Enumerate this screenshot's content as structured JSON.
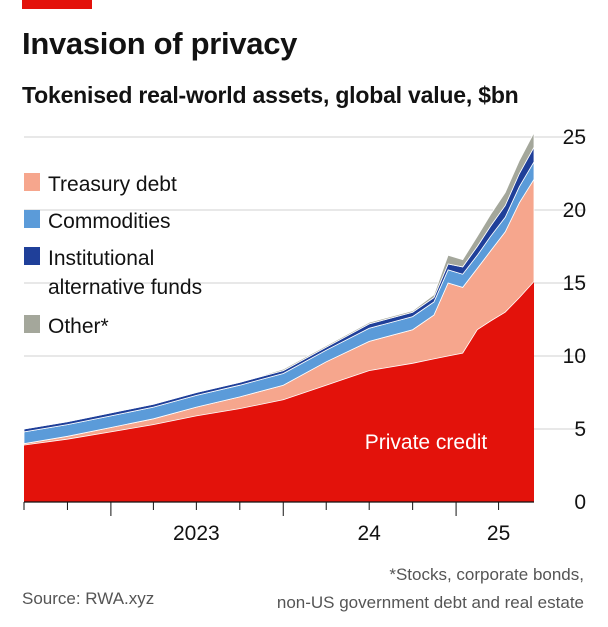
{
  "header": {
    "title": "Invasion of privacy",
    "subtitle": "Tokenised real-world assets, global value, $bn"
  },
  "colors": {
    "accent_tab": "#e3120b",
    "private_credit": "#e3120b",
    "treasury_debt": "#f6a68d",
    "commodities": "#5b9bd9",
    "institutional_alternative_funds": "#1f3f99",
    "other": "#a4a79b",
    "gridline": "#d0d0d0",
    "axis": "#121212"
  },
  "legend": [
    {
      "label": "Treasury debt",
      "color": "#f6a68d"
    },
    {
      "label": "Commodities",
      "color": "#5b9bd9"
    },
    {
      "label": "Institutional\nalternative funds",
      "color": "#1f3f99"
    },
    {
      "label": "Other*",
      "color": "#a4a79b"
    }
  ],
  "footnote": "*Stocks, corporate bonds,\nnon-US government debt and real estate",
  "source": "Source: RWA.xyz",
  "chart_data": {
    "type": "area",
    "stacked": true,
    "ylim": [
      0,
      25
    ],
    "yticks": [
      0,
      5,
      10,
      15,
      20,
      25
    ],
    "y_axis_side": "right",
    "grid": true,
    "legend_position": "top-left",
    "xlim": [
      "2022-07-01",
      "2025-06-15"
    ],
    "x_tick_labels": [
      {
        "label": "2023",
        "at": "2023-07-01"
      },
      {
        "label": "24",
        "at": "2024-07-01"
      },
      {
        "label": "25",
        "at": "2025-04-01"
      }
    ],
    "x": [
      "2022-07-01",
      "2022-10-01",
      "2023-01-01",
      "2023-04-01",
      "2023-07-01",
      "2023-10-01",
      "2024-01-01",
      "2024-04-01",
      "2024-07-01",
      "2024-10-01",
      "2024-11-15",
      "2024-12-15",
      "2025-01-15",
      "2025-02-15",
      "2025-03-15",
      "2025-04-15",
      "2025-05-15",
      "2025-06-15"
    ],
    "series": [
      {
        "name": "Private credit",
        "values": [
          3.9,
          4.3,
          4.8,
          5.3,
          5.9,
          6.4,
          7.0,
          8.0,
          9.0,
          9.5,
          9.8,
          10.0,
          10.2,
          11.8,
          12.4,
          13.0,
          14.0,
          15.1
        ]
      },
      {
        "name": "Treasury debt",
        "values": [
          0.1,
          0.2,
          0.3,
          0.4,
          0.6,
          0.8,
          1.0,
          1.6,
          2.0,
          2.3,
          3.0,
          5.0,
          4.5,
          4.2,
          4.8,
          5.5,
          6.5,
          7.0
        ]
      },
      {
        "name": "Commodities",
        "values": [
          0.8,
          0.8,
          0.8,
          0.8,
          0.8,
          0.8,
          0.8,
          0.8,
          0.9,
          0.9,
          0.9,
          0.9,
          0.9,
          0.9,
          1.0,
          1.0,
          1.1,
          1.2
        ]
      },
      {
        "name": "Institutional alternative funds",
        "values": [
          0.2,
          0.2,
          0.2,
          0.2,
          0.2,
          0.2,
          0.2,
          0.2,
          0.3,
          0.3,
          0.3,
          0.4,
          0.5,
          0.6,
          0.7,
          0.8,
          0.9,
          1.0
        ]
      },
      {
        "name": "Other*",
        "values": [
          0.0,
          0.0,
          0.0,
          0.0,
          0.0,
          0.0,
          0.1,
          0.1,
          0.1,
          0.1,
          0.2,
          0.6,
          0.5,
          0.7,
          0.8,
          0.9,
          0.9,
          1.0
        ]
      }
    ],
    "annotations": [
      {
        "text": "Private credit",
        "series": "Private credit"
      }
    ]
  }
}
